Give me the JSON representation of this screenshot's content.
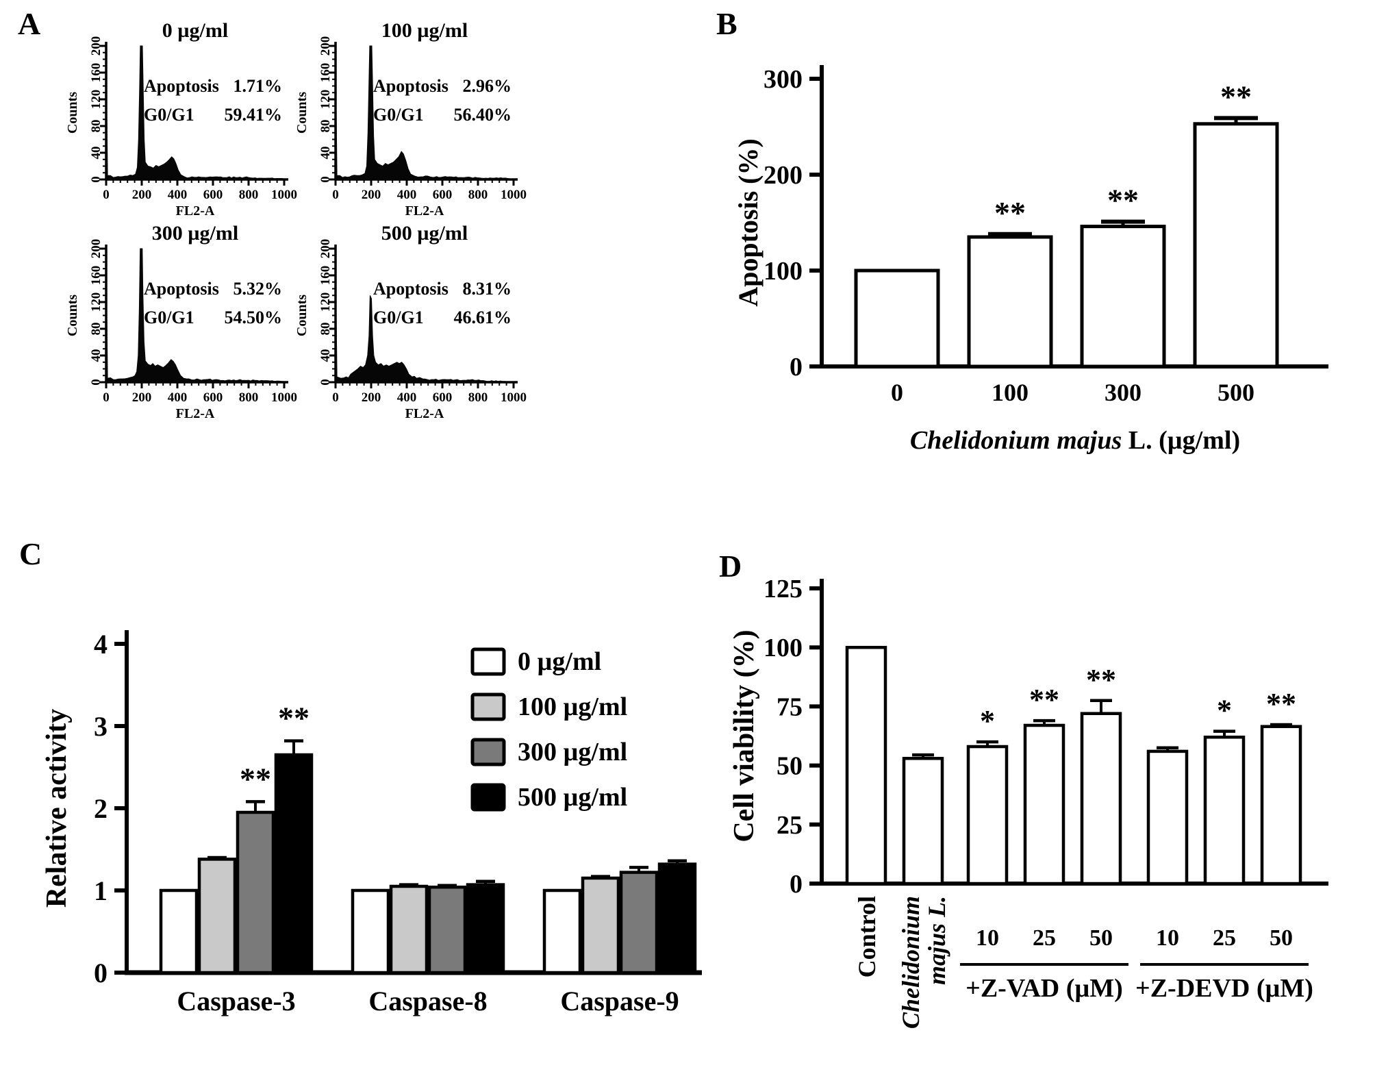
{
  "chart_data": [
    {
      "panel_label": "A",
      "type": "histogram-grid",
      "ylabel": "Counts",
      "xlabel": "FL2-A",
      "xlim": [
        0,
        1000
      ],
      "ylim": [
        0,
        200
      ],
      "yticks": [
        0,
        40,
        80,
        120,
        160,
        200
      ],
      "xticks": [
        0,
        200,
        400,
        600,
        800,
        1000
      ],
      "plots": [
        {
          "title": "0 µg/ml",
          "stats": {
            "apoptosis_label": "Apoptosis",
            "apoptosis_value": "1.71%",
            "g0g1_label": "G0/G1",
            "g0g1_value": "59.41%"
          },
          "envelope": [
            [
              0,
              2
            ],
            [
              4,
              105
            ],
            [
              8,
              6
            ],
            [
              40,
              3
            ],
            [
              80,
              4
            ],
            [
              120,
              5
            ],
            [
              150,
              6
            ],
            [
              165,
              8
            ],
            [
              175,
              18
            ],
            [
              182,
              60
            ],
            [
              188,
              140
            ],
            [
              192,
              200
            ],
            [
              204,
              200
            ],
            [
              208,
              140
            ],
            [
              214,
              60
            ],
            [
              220,
              26
            ],
            [
              235,
              20
            ],
            [
              250,
              19
            ],
            [
              265,
              17
            ],
            [
              280,
              21
            ],
            [
              295,
              19
            ],
            [
              310,
              21
            ],
            [
              325,
              23
            ],
            [
              340,
              26
            ],
            [
              355,
              30
            ],
            [
              368,
              34
            ],
            [
              380,
              31
            ],
            [
              392,
              24
            ],
            [
              405,
              14
            ],
            [
              420,
              7
            ],
            [
              440,
              4
            ],
            [
              470,
              3
            ],
            [
              520,
              4
            ],
            [
              560,
              3
            ],
            [
              620,
              4
            ],
            [
              680,
              3
            ],
            [
              740,
              3
            ],
            [
              800,
              3
            ],
            [
              860,
              2
            ],
            [
              920,
              2
            ],
            [
              1000,
              1
            ]
          ]
        },
        {
          "title": "100 µg/ml",
          "stats": {
            "apoptosis_label": "Apoptosis",
            "apoptosis_value": "2.96%",
            "g0g1_label": "G0/G1",
            "g0g1_value": "56.40%"
          },
          "envelope": [
            [
              0,
              2
            ],
            [
              4,
              105
            ],
            [
              8,
              6
            ],
            [
              40,
              3
            ],
            [
              80,
              4
            ],
            [
              120,
              6
            ],
            [
              150,
              7
            ],
            [
              165,
              9
            ],
            [
              175,
              20
            ],
            [
              182,
              70
            ],
            [
              188,
              150
            ],
            [
              192,
              200
            ],
            [
              204,
              200
            ],
            [
              208,
              145
            ],
            [
              214,
              65
            ],
            [
              220,
              30
            ],
            [
              235,
              24
            ],
            [
              250,
              22
            ],
            [
              265,
              20
            ],
            [
              280,
              24
            ],
            [
              295,
              22
            ],
            [
              310,
              24
            ],
            [
              325,
              26
            ],
            [
              340,
              30
            ],
            [
              355,
              34
            ],
            [
              370,
              42
            ],
            [
              382,
              38
            ],
            [
              395,
              28
            ],
            [
              408,
              16
            ],
            [
              422,
              8
            ],
            [
              445,
              5
            ],
            [
              480,
              4
            ],
            [
              530,
              4
            ],
            [
              580,
              3
            ],
            [
              640,
              4
            ],
            [
              700,
              3
            ],
            [
              760,
              3
            ],
            [
              820,
              2
            ],
            [
              880,
              2
            ],
            [
              940,
              2
            ],
            [
              1000,
              1
            ]
          ]
        },
        {
          "title": "300 µg/ml",
          "stats": {
            "apoptosis_label": "Apoptosis",
            "apoptosis_value": "5.32%",
            "g0g1_label": "G0/G1",
            "g0g1_value": "54.50%"
          },
          "envelope": [
            [
              0,
              2
            ],
            [
              4,
              105
            ],
            [
              8,
              6
            ],
            [
              40,
              4
            ],
            [
              80,
              5
            ],
            [
              120,
              6
            ],
            [
              150,
              8
            ],
            [
              162,
              10
            ],
            [
              172,
              16
            ],
            [
              180,
              40
            ],
            [
              186,
              110
            ],
            [
              191,
              200
            ],
            [
              203,
              200
            ],
            [
              207,
              130
            ],
            [
              213,
              60
            ],
            [
              220,
              32
            ],
            [
              235,
              27
            ],
            [
              250,
              25
            ],
            [
              262,
              28
            ],
            [
              275,
              24
            ],
            [
              290,
              26
            ],
            [
              305,
              24
            ],
            [
              320,
              22
            ],
            [
              335,
              25
            ],
            [
              350,
              29
            ],
            [
              365,
              34
            ],
            [
              378,
              31
            ],
            [
              390,
              26
            ],
            [
              403,
              18
            ],
            [
              418,
              10
            ],
            [
              435,
              6
            ],
            [
              465,
              5
            ],
            [
              510,
              5
            ],
            [
              560,
              4
            ],
            [
              620,
              4
            ],
            [
              680,
              3
            ],
            [
              740,
              3
            ],
            [
              800,
              3
            ],
            [
              860,
              2
            ],
            [
              920,
              2
            ],
            [
              1000,
              1
            ]
          ]
        },
        {
          "title": "500 µg/ml",
          "stats": {
            "apoptosis_label": "Apoptosis",
            "apoptosis_value": "8.31%",
            "g0g1_label": "G0/G1",
            "g0g1_value": "46.61%"
          },
          "envelope": [
            [
              0,
              2
            ],
            [
              4,
              105
            ],
            [
              8,
              8
            ],
            [
              30,
              6
            ],
            [
              60,
              8
            ],
            [
              85,
              12
            ],
            [
              105,
              16
            ],
            [
              125,
              20
            ],
            [
              140,
              24
            ],
            [
              155,
              22
            ],
            [
              168,
              26
            ],
            [
              180,
              40
            ],
            [
              188,
              70
            ],
            [
              194,
              130
            ],
            [
              202,
              125
            ],
            [
              208,
              70
            ],
            [
              215,
              40
            ],
            [
              225,
              30
            ],
            [
              240,
              26
            ],
            [
              255,
              28
            ],
            [
              270,
              24
            ],
            [
              285,
              26
            ],
            [
              300,
              24
            ],
            [
              315,
              26
            ],
            [
              330,
              28
            ],
            [
              345,
              30
            ],
            [
              358,
              28
            ],
            [
              372,
              30
            ],
            [
              385,
              26
            ],
            [
              398,
              20
            ],
            [
              412,
              12
            ],
            [
              430,
              8
            ],
            [
              455,
              6
            ],
            [
              490,
              5
            ],
            [
              540,
              4
            ],
            [
              600,
              4
            ],
            [
              660,
              3
            ],
            [
              720,
              3
            ],
            [
              780,
              3
            ],
            [
              840,
              2
            ],
            [
              1000,
              1
            ]
          ]
        }
      ]
    },
    {
      "panel_label": "B",
      "type": "bar",
      "ylabel": "Apoptosis (%)",
      "xlabel_italic": "Chelidonium majus",
      "xlabel_rest": " L. (µg/ml)",
      "categories": [
        "0",
        "100",
        "300",
        "500"
      ],
      "values": [
        100,
        135,
        146,
        253
      ],
      "errors": [
        0,
        3,
        5,
        6
      ],
      "sig": [
        "",
        "**",
        "**",
        "**"
      ],
      "ylim": [
        0,
        300
      ],
      "yticks": [
        0,
        100,
        200,
        300
      ],
      "bar_fill": "#ffffff",
      "bar_stroke": "#000000"
    },
    {
      "panel_label": "C",
      "type": "grouped-bar",
      "ylabel": "Relative activity",
      "categories": [
        "Caspase-3",
        "Caspase-8",
        "Caspase-9"
      ],
      "ylim": [
        0,
        4
      ],
      "yticks": [
        0,
        1,
        2,
        3,
        4
      ],
      "legend_position": "top-right",
      "series": [
        {
          "label": "0 µg/ml",
          "fill": "#ffffff",
          "values": [
            1.0,
            1.0,
            1.0
          ],
          "errors": [
            0,
            0,
            0
          ],
          "sig": [
            "",
            "",
            ""
          ]
        },
        {
          "label": "100 µg/ml",
          "fill": "#c9c9c9",
          "values": [
            1.38,
            1.05,
            1.15
          ],
          "errors": [
            0.02,
            0.02,
            0.02
          ],
          "sig": [
            "",
            "",
            ""
          ]
        },
        {
          "label": "300 µg/ml",
          "fill": "#7a7a7a",
          "values": [
            1.95,
            1.04,
            1.22
          ],
          "errors": [
            0.13,
            0.02,
            0.06
          ],
          "sig": [
            "**",
            "",
            ""
          ]
        },
        {
          "label": "500 µg/ml",
          "fill": "#000000",
          "values": [
            2.65,
            1.07,
            1.32
          ],
          "errors": [
            0.17,
            0.04,
            0.04
          ],
          "sig": [
            "**",
            "",
            ""
          ]
        }
      ]
    },
    {
      "panel_label": "D",
      "type": "bar",
      "ylabel": "Cell viability  (%)",
      "ylim": [
        0,
        125
      ],
      "yticks": [
        0,
        25,
        50,
        75,
        100,
        125
      ],
      "bar_fill": "#ffffff",
      "bars": [
        {
          "label": "Control",
          "label_lines": [
            "Control"
          ],
          "rotated": true,
          "italic": false,
          "value": 100,
          "error": 0,
          "sig": ""
        },
        {
          "label": "Chelidonium majus L.",
          "label_lines": [
            "Chelidonium",
            "majus L."
          ],
          "rotated": true,
          "italic": true,
          "value": 53,
          "error": 1.5,
          "sig": ""
        },
        {
          "label": "10",
          "rotated": false,
          "value": 58,
          "error": 2,
          "sig": "*"
        },
        {
          "label": "25",
          "rotated": false,
          "value": 67,
          "error": 2,
          "sig": "**"
        },
        {
          "label": "50",
          "rotated": false,
          "value": 72,
          "error": 5.5,
          "sig": "**"
        },
        {
          "label": "10",
          "rotated": false,
          "value": 56,
          "error": 1.5,
          "sig": ""
        },
        {
          "label": "25",
          "rotated": false,
          "value": 62,
          "error": 2.5,
          "sig": "*"
        },
        {
          "label": "50",
          "rotated": false,
          "value": 66.5,
          "error": 0.8,
          "sig": "**"
        }
      ],
      "groups": [
        {
          "name": "+Z-VAD (µM)",
          "bars": [
            2,
            3,
            4
          ]
        },
        {
          "name": "+Z-DEVD (µM)",
          "bars": [
            5,
            6,
            7
          ]
        }
      ]
    }
  ]
}
